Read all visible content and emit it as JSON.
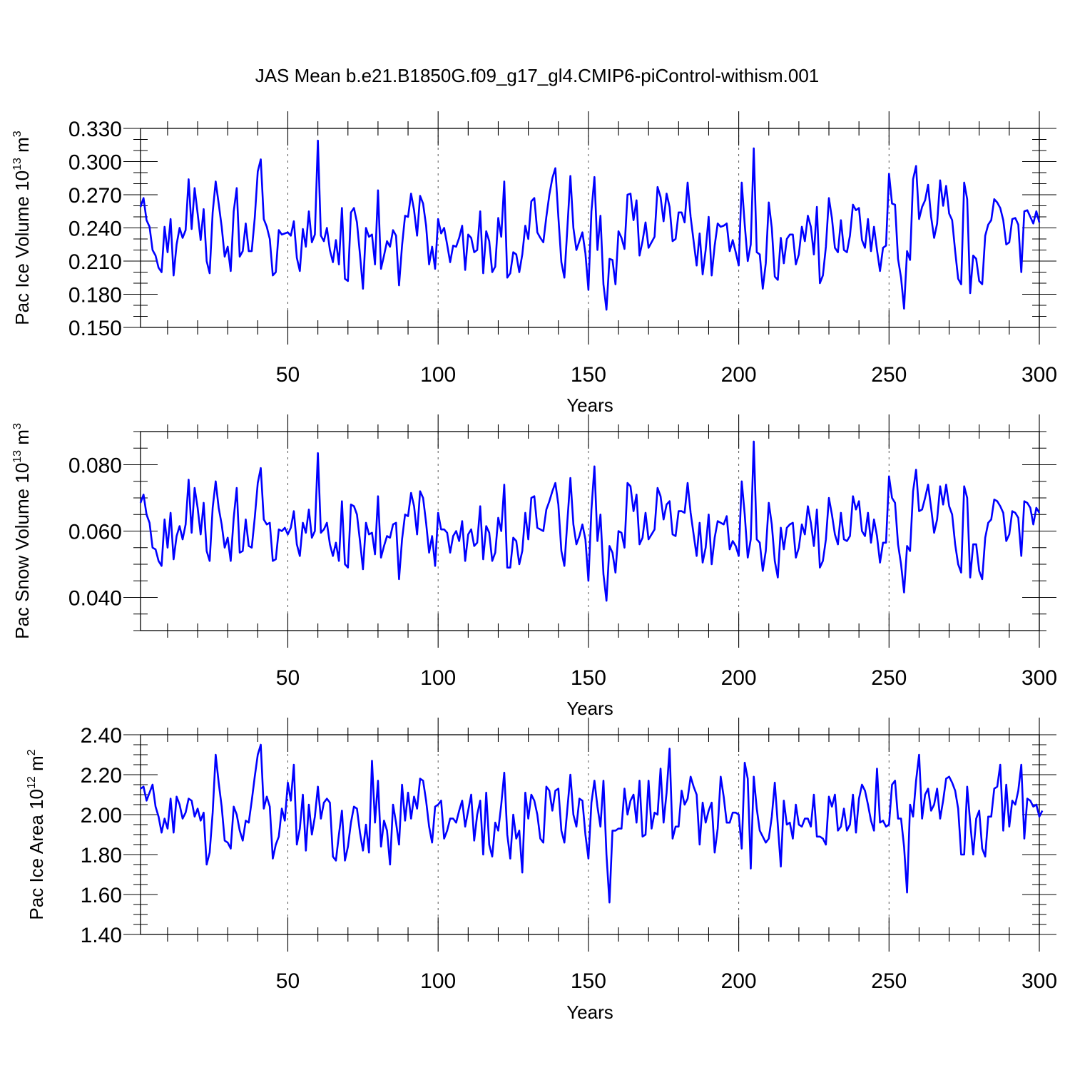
{
  "figure": {
    "title": "JAS Mean b.e21.B1850G.f09_g17_gl4.CMIP6-piControl-withism.001",
    "line_color": "#0000ff"
  },
  "chart_data": [
    {
      "type": "line",
      "title": "JAS Mean b.e21.B1850G.f09_g17_gl4.CMIP6-piControl-withism.001",
      "xlabel": "Years",
      "ylabel": "Pac Ice Volume 10",
      "ylabel_exp": "13",
      "ylabel_unit": " m",
      "ylabel_unit_exp": "3",
      "xlim": [
        1,
        300
      ],
      "ylim": [
        0.15,
        0.33
      ],
      "xticks": [
        50,
        100,
        150,
        200,
        250,
        300
      ],
      "xtick_labels": [
        "50",
        "100",
        "150",
        "200",
        "250",
        "300"
      ],
      "yticks": [
        0.15,
        0.18,
        0.21,
        0.24,
        0.27,
        0.3,
        0.33
      ],
      "ytick_labels": [
        "0.150",
        "0.180",
        "0.210",
        "0.240",
        "0.270",
        "0.300",
        "0.330"
      ],
      "y_minor_step": 0.01,
      "grid_x_dashed": true,
      "series": [
        {
          "name": "Pac Ice Volume",
          "x_start": 1,
          "values": [
            0.259,
            0.267,
            0.247,
            0.241,
            0.22,
            0.215,
            0.204,
            0.2,
            0.241,
            0.218,
            0.248,
            0.197,
            0.225,
            0.24,
            0.231,
            0.238,
            0.284,
            0.239,
            0.276,
            0.253,
            0.229,
            0.257,
            0.21,
            0.199,
            0.254,
            0.282,
            0.262,
            0.241,
            0.214,
            0.223,
            0.201,
            0.255,
            0.276,
            0.214,
            0.219,
            0.244,
            0.219,
            0.219,
            0.249,
            0.291,
            0.302,
            0.248,
            0.241,
            0.23,
            0.197,
            0.2,
            0.238,
            0.234,
            0.235,
            0.236,
            0.233,
            0.246,
            0.213,
            0.201,
            0.239,
            0.223,
            0.255,
            0.227,
            0.234,
            0.319,
            0.233,
            0.228,
            0.24,
            0.22,
            0.209,
            0.229,
            0.207,
            0.258,
            0.194,
            0.192,
            0.254,
            0.258,
            0.245,
            0.216,
            0.185,
            0.24,
            0.232,
            0.234,
            0.207,
            0.274,
            0.203,
            0.215,
            0.228,
            0.223,
            0.238,
            0.233,
            0.188,
            0.224,
            0.251,
            0.25,
            0.271,
            0.256,
            0.233,
            0.269,
            0.262,
            0.242,
            0.207,
            0.223,
            0.203,
            0.248,
            0.235,
            0.24,
            0.225,
            0.209,
            0.224,
            0.223,
            0.231,
            0.242,
            0.202,
            0.234,
            0.231,
            0.218,
            0.22,
            0.255,
            0.199,
            0.237,
            0.228,
            0.2,
            0.205,
            0.249,
            0.232,
            0.282,
            0.195,
            0.199,
            0.218,
            0.216,
            0.2,
            0.216,
            0.242,
            0.23,
            0.264,
            0.267,
            0.236,
            0.231,
            0.227,
            0.25,
            0.27,
            0.285,
            0.294,
            0.25,
            0.209,
            0.195,
            0.24,
            0.287,
            0.24,
            0.22,
            0.228,
            0.236,
            0.217,
            0.184,
            0.255,
            0.286,
            0.22,
            0.251,
            0.189,
            0.166,
            0.212,
            0.211,
            0.189,
            0.237,
            0.231,
            0.221,
            0.27,
            0.271,
            0.247,
            0.265,
            0.215,
            0.228,
            0.245,
            0.222,
            0.227,
            0.232,
            0.277,
            0.268,
            0.246,
            0.271,
            0.259,
            0.228,
            0.23,
            0.254,
            0.254,
            0.245,
            0.281,
            0.25,
            0.228,
            0.206,
            0.235,
            0.198,
            0.22,
            0.25,
            0.197,
            0.224,
            0.244,
            0.241,
            0.242,
            0.244,
            0.219,
            0.229,
            0.218,
            0.206,
            0.281,
            0.243,
            0.21,
            0.225,
            0.312,
            0.218,
            0.216,
            0.185,
            0.208,
            0.263,
            0.24,
            0.196,
            0.193,
            0.231,
            0.208,
            0.23,
            0.234,
            0.234,
            0.207,
            0.216,
            0.241,
            0.228,
            0.251,
            0.241,
            0.216,
            0.259,
            0.19,
            0.197,
            0.223,
            0.267,
            0.249,
            0.222,
            0.218,
            0.247,
            0.22,
            0.218,
            0.233,
            0.261,
            0.256,
            0.258,
            0.229,
            0.222,
            0.248,
            0.219,
            0.241,
            0.22,
            0.201,
            0.222,
            0.224,
            0.289,
            0.262,
            0.261,
            0.212,
            0.195,
            0.167,
            0.219,
            0.211,
            0.284,
            0.296,
            0.248,
            0.259,
            0.265,
            0.279,
            0.25,
            0.231,
            0.244,
            0.283,
            0.26,
            0.278,
            0.253,
            0.247,
            0.219,
            0.194,
            0.189,
            0.281,
            0.266,
            0.181,
            0.215,
            0.212,
            0.192,
            0.189,
            0.233,
            0.243,
            0.247,
            0.266,
            0.263,
            0.258,
            0.247,
            0.225,
            0.227,
            0.248,
            0.249,
            0.243,
            0.2,
            0.255,
            0.256,
            0.25,
            0.244,
            0.255,
            0.245
          ]
        }
      ]
    },
    {
      "type": "line",
      "xlabel": "Years",
      "ylabel": "Pac Snow Volume 10",
      "ylabel_exp": "13",
      "ylabel_unit": " m",
      "ylabel_unit_exp": "3",
      "xlim": [
        1,
        300
      ],
      "ylim": [
        0.03,
        0.09
      ],
      "xticks": [
        50,
        100,
        150,
        200,
        250,
        300
      ],
      "xtick_labels": [
        "50",
        "100",
        "150",
        "200",
        "250",
        "300"
      ],
      "yticks": [
        0.04,
        0.06,
        0.08
      ],
      "ytick_labels": [
        "0.040",
        "0.060",
        "0.080"
      ],
      "y_minor_step": 0.005,
      "grid_x_dashed": true,
      "series": [
        {
          "name": "Pac Snow Volume",
          "x_start": 1,
          "values": [
            0.0685,
            0.071,
            0.065,
            0.0625,
            0.055,
            0.0545,
            0.051,
            0.0495,
            0.0635,
            0.055,
            0.0655,
            0.0515,
            0.0585,
            0.0615,
            0.0575,
            0.062,
            0.0755,
            0.0595,
            0.073,
            0.067,
            0.059,
            0.0685,
            0.054,
            0.051,
            0.067,
            0.075,
            0.067,
            0.062,
            0.055,
            0.058,
            0.051,
            0.064,
            0.073,
            0.0535,
            0.054,
            0.0635,
            0.0555,
            0.055,
            0.064,
            0.0745,
            0.079,
            0.0635,
            0.062,
            0.0625,
            0.051,
            0.0515,
            0.0605,
            0.06,
            0.061,
            0.059,
            0.061,
            0.066,
            0.056,
            0.0525,
            0.0625,
            0.0595,
            0.0665,
            0.058,
            0.06,
            0.0835,
            0.0595,
            0.0605,
            0.0625,
            0.056,
            0.0525,
            0.0565,
            0.051,
            0.069,
            0.05,
            0.049,
            0.068,
            0.0675,
            0.065,
            0.057,
            0.0485,
            0.0625,
            0.059,
            0.0595,
            0.053,
            0.0705,
            0.052,
            0.0555,
            0.0585,
            0.058,
            0.062,
            0.0625,
            0.0455,
            0.0575,
            0.065,
            0.0645,
            0.0715,
            0.0675,
            0.059,
            0.072,
            0.07,
            0.0625,
            0.0535,
            0.0585,
            0.0495,
            0.0655,
            0.0605,
            0.0605,
            0.0595,
            0.0535,
            0.0585,
            0.06,
            0.057,
            0.063,
            0.051,
            0.059,
            0.0605,
            0.0555,
            0.0565,
            0.0675,
            0.0515,
            0.0615,
            0.0595,
            0.051,
            0.0535,
            0.064,
            0.06,
            0.074,
            0.049,
            0.049,
            0.058,
            0.057,
            0.05,
            0.054,
            0.0655,
            0.0575,
            0.07,
            0.0705,
            0.061,
            0.0605,
            0.06,
            0.0665,
            0.069,
            0.072,
            0.0745,
            0.068,
            0.054,
            0.0495,
            0.063,
            0.076,
            0.062,
            0.056,
            0.0585,
            0.062,
            0.0575,
            0.045,
            0.0665,
            0.0795,
            0.057,
            0.065,
            0.047,
            0.039,
            0.0555,
            0.0535,
            0.0475,
            0.06,
            0.0595,
            0.055,
            0.0745,
            0.0735,
            0.066,
            0.071,
            0.056,
            0.058,
            0.0655,
            0.0575,
            0.059,
            0.0605,
            0.073,
            0.0705,
            0.0635,
            0.068,
            0.069,
            0.059,
            0.0585,
            0.066,
            0.066,
            0.0655,
            0.0745,
            0.0655,
            0.059,
            0.0525,
            0.0625,
            0.0505,
            0.055,
            0.065,
            0.05,
            0.058,
            0.063,
            0.0625,
            0.062,
            0.0645,
            0.0545,
            0.057,
            0.0555,
            0.0525,
            0.075,
            0.065,
            0.052,
            0.0575,
            0.087,
            0.0575,
            0.0565,
            0.048,
            0.054,
            0.0685,
            0.062,
            0.051,
            0.046,
            0.061,
            0.0545,
            0.061,
            0.062,
            0.0625,
            0.052,
            0.055,
            0.062,
            0.059,
            0.0675,
            0.0625,
            0.0555,
            0.0665,
            0.049,
            0.051,
            0.0575,
            0.07,
            0.065,
            0.059,
            0.056,
            0.0655,
            0.0575,
            0.057,
            0.0585,
            0.0705,
            0.0665,
            0.069,
            0.06,
            0.0585,
            0.0655,
            0.0565,
            0.0635,
            0.0585,
            0.0505,
            0.0565,
            0.0565,
            0.0765,
            0.07,
            0.0685,
            0.056,
            0.05,
            0.0415,
            0.0555,
            0.054,
            0.072,
            0.0785,
            0.066,
            0.0665,
            0.07,
            0.074,
            0.067,
            0.0595,
            0.0635,
            0.0735,
            0.068,
            0.074,
            0.0675,
            0.065,
            0.056,
            0.05,
            0.0475,
            0.0735,
            0.07,
            0.046,
            0.056,
            0.056,
            0.048,
            0.0455,
            0.058,
            0.0625,
            0.0635,
            0.0695,
            0.069,
            0.0675,
            0.0655,
            0.057,
            0.059,
            0.066,
            0.0655,
            0.064,
            0.0525,
            0.069,
            0.0685,
            0.067,
            0.062,
            0.067,
            0.0655
          ]
        }
      ]
    },
    {
      "type": "line",
      "xlabel": "Years",
      "ylabel": "Pac Ice Area 10",
      "ylabel_exp": "12",
      "ylabel_unit": " m",
      "ylabel_unit_exp": "2",
      "xlim": [
        1,
        300
      ],
      "ylim": [
        1.4,
        2.4
      ],
      "xticks": [
        50,
        100,
        150,
        200,
        250,
        300
      ],
      "xtick_labels": [
        "50",
        "100",
        "150",
        "200",
        "250",
        "300"
      ],
      "yticks": [
        1.4,
        1.6,
        1.8,
        2.0,
        2.2,
        2.4
      ],
      "ytick_labels": [
        "1.40",
        "1.60",
        "1.80",
        "2.00",
        "2.20",
        "2.40"
      ],
      "y_minor_step": 0.05,
      "grid_x_dashed": true,
      "series": [
        {
          "name": "Pac Ice Area",
          "x_start": 1,
          "values": [
            2.13,
            2.14,
            2.07,
            2.11,
            2.15,
            2.04,
            1.99,
            1.91,
            1.98,
            1.93,
            2.08,
            1.91,
            2.09,
            2.05,
            1.98,
            2.01,
            2.08,
            2.07,
            1.99,
            2.03,
            1.97,
            2.01,
            1.75,
            1.81,
            2.01,
            2.3,
            2.16,
            2.04,
            1.87,
            1.86,
            1.83,
            2.04,
            2.0,
            1.92,
            1.87,
            1.97,
            1.96,
            2.07,
            2.19,
            2.3,
            2.35,
            2.03,
            2.09,
            2.04,
            1.78,
            1.85,
            1.89,
            2.03,
            1.97,
            2.16,
            2.07,
            2.25,
            1.85,
            1.93,
            2.1,
            1.82,
            2.05,
            1.9,
            1.99,
            2.14,
            1.98,
            2.06,
            2.08,
            2.06,
            1.79,
            1.77,
            1.9,
            2.02,
            1.77,
            1.84,
            1.96,
            2.04,
            2.03,
            1.91,
            1.82,
            1.95,
            1.81,
            2.27,
            1.96,
            2.17,
            1.84,
            1.97,
            1.92,
            1.75,
            2.05,
            1.96,
            1.85,
            2.15,
            1.97,
            2.11,
            1.98,
            2.09,
            2.03,
            2.18,
            2.17,
            2.07,
            1.94,
            1.86,
            2.04,
            2.05,
            2.07,
            1.88,
            1.92,
            1.98,
            1.98,
            1.96,
            2.02,
            2.07,
            1.94,
            2.02,
            2.1,
            1.87,
            2.0,
            2.07,
            1.8,
            2.11,
            1.85,
            1.79,
            1.96,
            1.92,
            2.05,
            2.21,
            1.9,
            1.78,
            2.0,
            1.88,
            1.92,
            1.71,
            2.11,
            1.98,
            2.1,
            2.07,
            2.0,
            1.88,
            1.86,
            2.14,
            2.12,
            2.02,
            2.12,
            2.13,
            1.92,
            1.86,
            2.03,
            2.2,
            2.0,
            1.94,
            2.08,
            2.07,
            1.9,
            1.78,
            2.06,
            2.17,
            2.04,
            1.94,
            2.17,
            1.8,
            1.56,
            1.92,
            1.92,
            1.93,
            1.93,
            2.13,
            2.0,
            2.07,
            2.1,
            1.96,
            2.17,
            1.89,
            1.9,
            2.17,
            1.93,
            2.01,
            2.0,
            2.23,
            1.96,
            2.11,
            2.33,
            1.88,
            1.94,
            1.94,
            2.12,
            2.05,
            2.08,
            2.19,
            2.14,
            2.1,
            1.85,
            2.06,
            1.96,
            2.02,
            2.06,
            1.81,
            1.93,
            2.19,
            2.09,
            1.96,
            1.96,
            2.01,
            2.01,
            2.0,
            1.83,
            2.26,
            2.18,
            1.73,
            2.19,
            2.03,
            1.92,
            1.89,
            1.86,
            1.88,
            1.99,
            2.16,
            1.95,
            1.74,
            2.07,
            1.95,
            1.96,
            1.88,
            2.05,
            1.95,
            1.94,
            1.98,
            1.98,
            1.94,
            2.1,
            1.89,
            1.89,
            1.88,
            1.85,
            2.09,
            2.04,
            2.1,
            1.92,
            1.94,
            2.03,
            1.92,
            1.95,
            2.1,
            1.91,
            2.08,
            2.15,
            2.12,
            2.05,
            1.97,
            1.92,
            2.23,
            1.96,
            1.97,
            1.94,
            1.95,
            2.15,
            2.17,
            1.98,
            1.98,
            1.84,
            1.61,
            2.05,
            1.99,
            2.17,
            2.3,
            1.98,
            2.1,
            2.13,
            2.02,
            2.05,
            2.13,
            1.98,
            2.07,
            2.18,
            2.19,
            2.16,
            2.12,
            2.03,
            1.8,
            1.8,
            2.14,
            1.96,
            1.8,
            1.98,
            2.02,
            1.83,
            1.79,
            1.99,
            1.99,
            2.13,
            2.14,
            2.25,
            1.92,
            2.15,
            1.94,
            2.07,
            2.05,
            2.12,
            2.25,
            1.88,
            2.08,
            2.07,
            2.04,
            2.05,
            1.99,
            2.02
          ]
        }
      ]
    }
  ]
}
